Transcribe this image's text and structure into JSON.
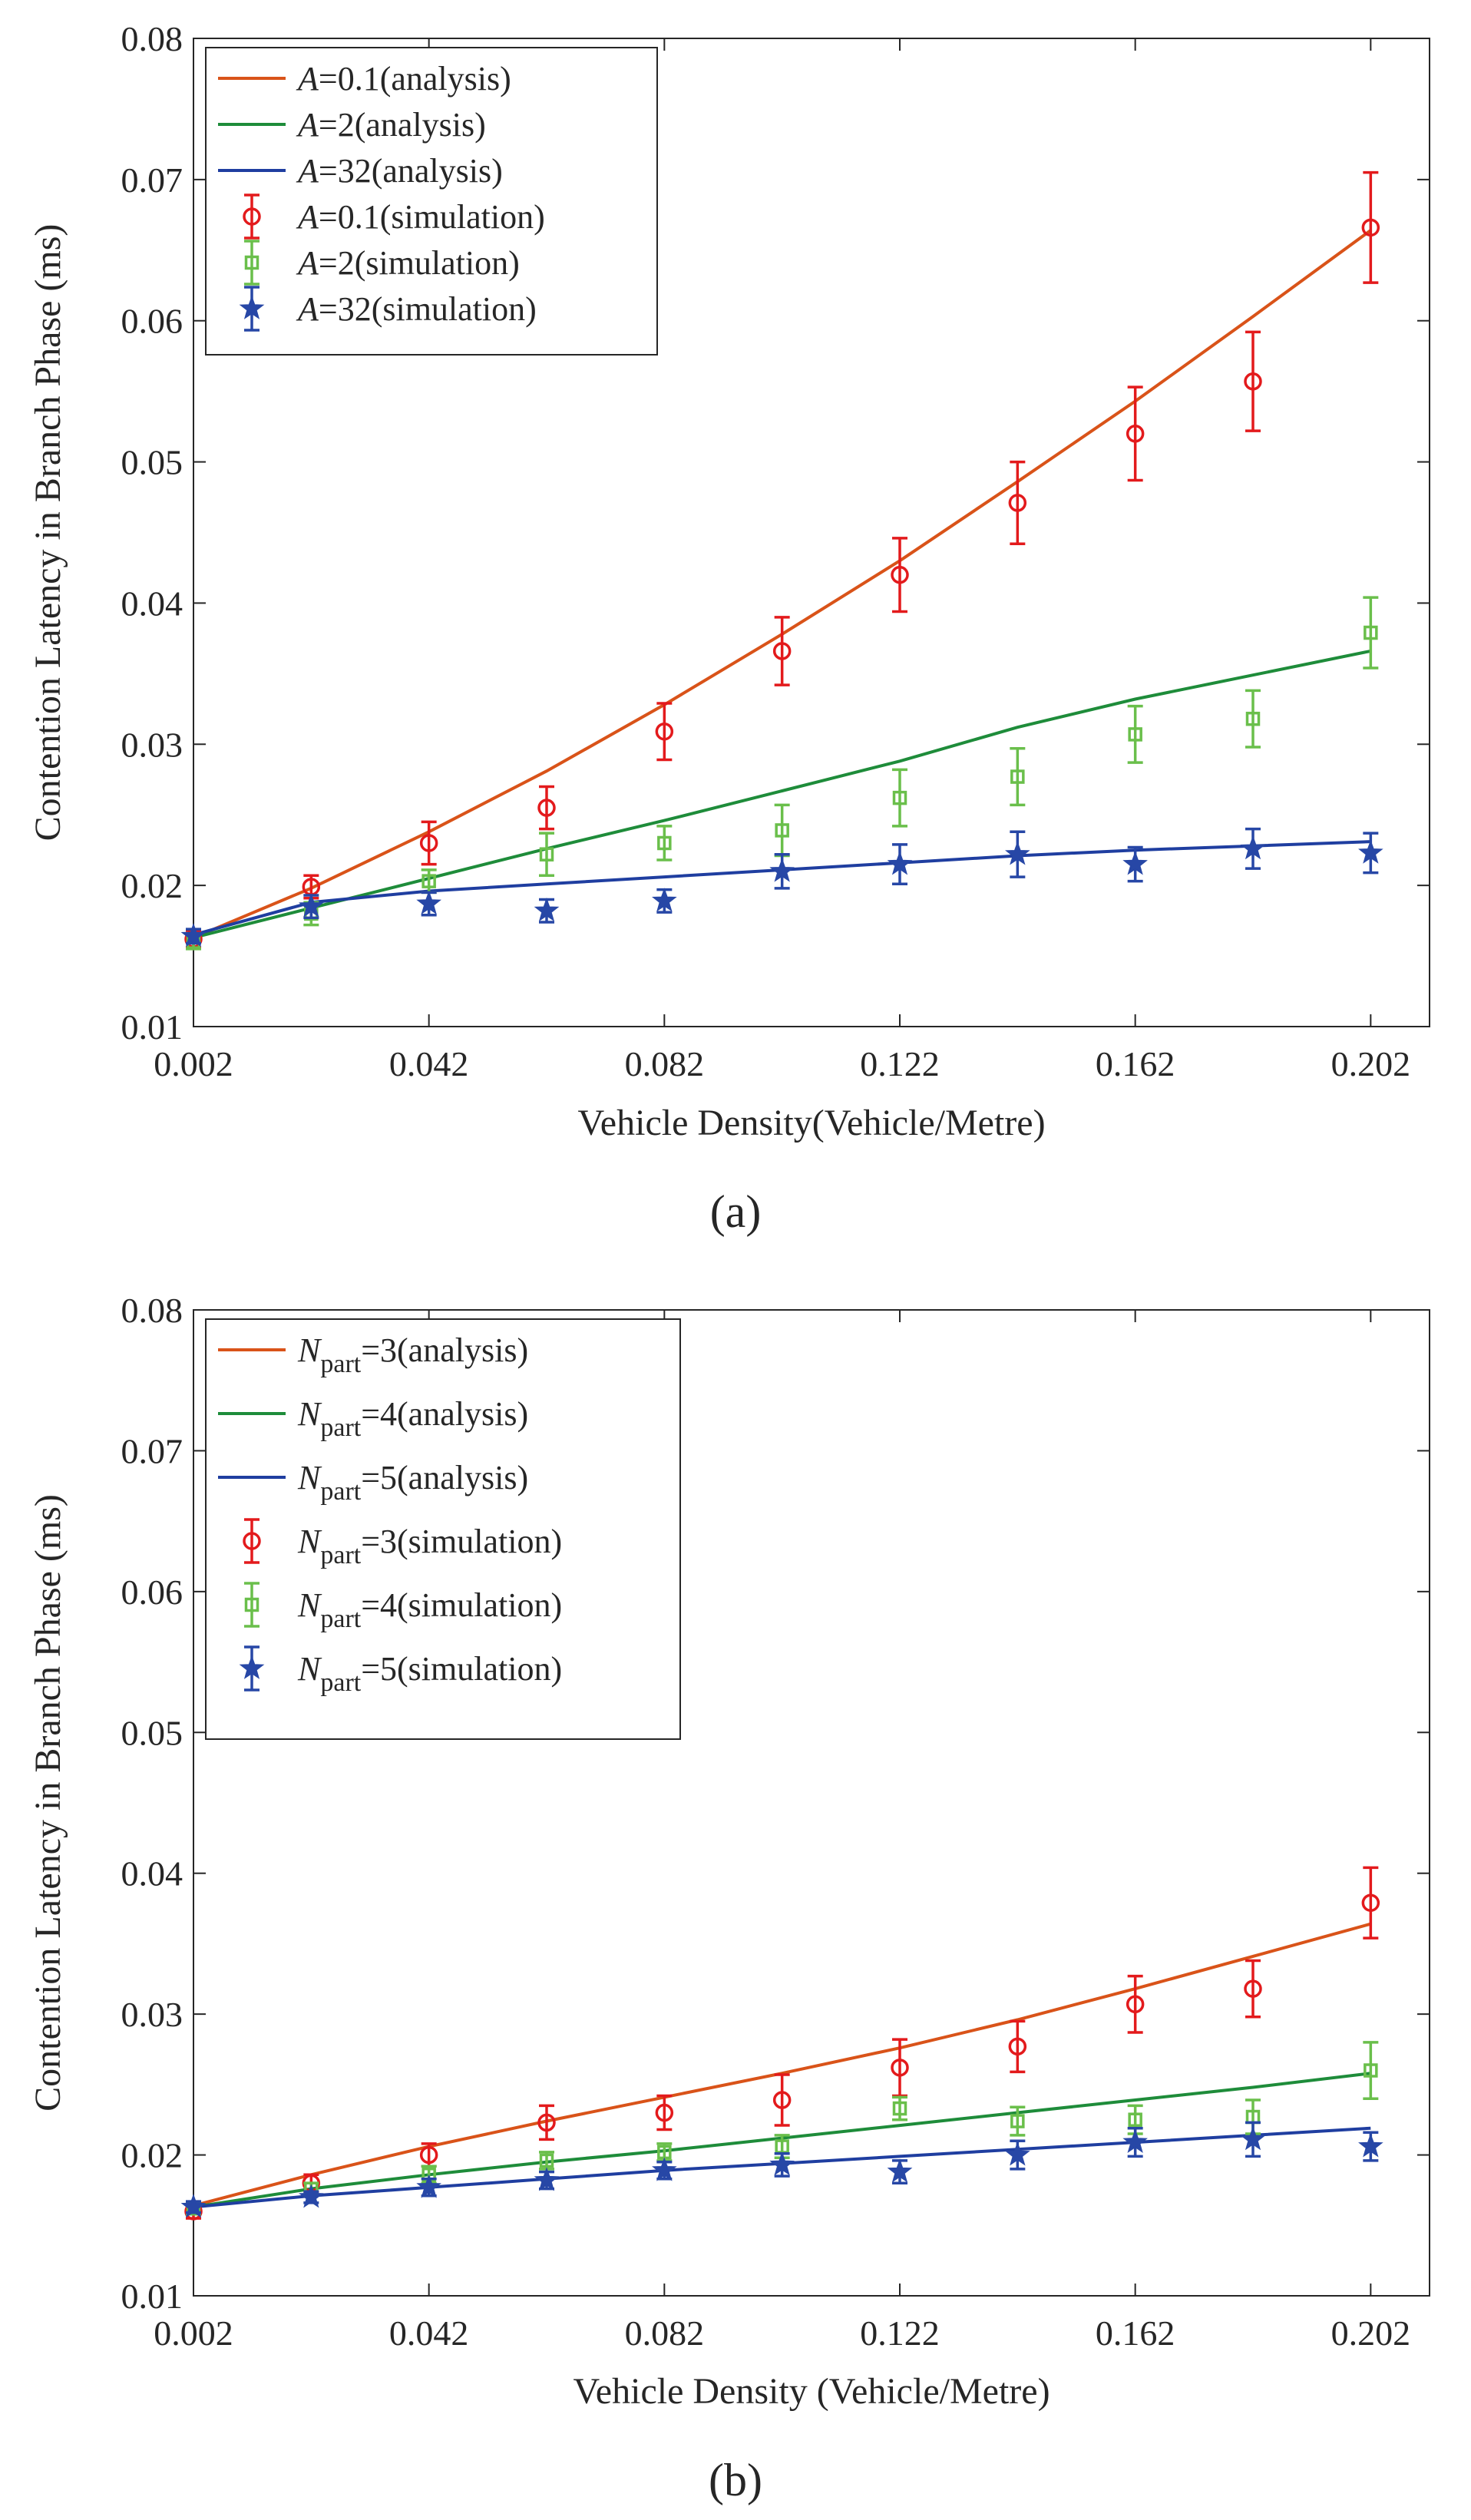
{
  "chart_data": [
    {
      "type": "line",
      "panel_label": "(a)",
      "xlabel": "Vehicle Density(Vehicle/Metre)",
      "ylabel": "Contention Latency in Branch Phase (ms)",
      "xlim": [
        0.002,
        0.212
      ],
      "ylim": [
        0.01,
        0.08
      ],
      "xticks": [
        0.002,
        0.042,
        0.082,
        0.122,
        0.162,
        0.202
      ],
      "xtick_labels": [
        "0.002",
        "0.042",
        "0.082",
        "0.122",
        "0.162",
        "0.202"
      ],
      "yticks": [
        0.01,
        0.02,
        0.03,
        0.04,
        0.05,
        0.06,
        0.07,
        0.08
      ],
      "ytick_labels": [
        "0.01",
        "0.02",
        "0.03",
        "0.04",
        "0.05",
        "0.06",
        "0.07",
        "0.08"
      ],
      "x": [
        0.002,
        0.022,
        0.042,
        0.062,
        0.082,
        0.102,
        0.122,
        0.142,
        0.162,
        0.182,
        0.202
      ],
      "legend_position": "top-left",
      "series": [
        {
          "kind": "analysis",
          "legend": {
            "symbol": "A",
            "text": "=0.1(analysis)"
          },
          "color": "#d95319",
          "values": [
            0.0163,
            0.0198,
            0.0238,
            0.0281,
            0.0328,
            0.0378,
            0.043,
            0.0486,
            0.0543,
            0.0603,
            0.0664
          ]
        },
        {
          "kind": "analysis",
          "legend": {
            "symbol": "A",
            "text": "=2(analysis)"
          },
          "color": "#1e8c3a",
          "values": [
            0.0163,
            0.0184,
            0.0205,
            0.0226,
            0.0246,
            0.0267,
            0.0288,
            0.0312,
            0.0332,
            0.0349,
            0.0366
          ]
        },
        {
          "kind": "analysis",
          "legend": {
            "symbol": "A",
            "text": "=32(analysis)"
          },
          "color": "#1f3ea0",
          "values": [
            0.0165,
            0.0188,
            0.0196,
            0.0201,
            0.0206,
            0.0211,
            0.0216,
            0.0221,
            0.0225,
            0.0228,
            0.0231
          ]
        },
        {
          "kind": "simulation",
          "marker": "circle",
          "legend": {
            "symbol": "A",
            "text": "=0.1(simulation)"
          },
          "color": "#e31a1c",
          "values": [
            0.0162,
            0.0199,
            0.023,
            0.0255,
            0.0309,
            0.0366,
            0.042,
            0.0471,
            0.052,
            0.0557,
            0.0666
          ],
          "errors": [
            0.0006,
            0.0008,
            0.0015,
            0.0015,
            0.002,
            0.0024,
            0.0026,
            0.0029,
            0.0033,
            0.0035,
            0.0039
          ]
        },
        {
          "kind": "simulation",
          "marker": "square",
          "legend": {
            "symbol": "A",
            "text": "=2(simulation)"
          },
          "color": "#6abf4b",
          "values": [
            0.016,
            0.018,
            0.0203,
            0.0222,
            0.023,
            0.0239,
            0.0262,
            0.0277,
            0.0307,
            0.0318,
            0.0379
          ],
          "errors": [
            0.0005,
            0.0008,
            0.0008,
            0.0015,
            0.0012,
            0.0018,
            0.002,
            0.002,
            0.002,
            0.002,
            0.0025
          ]
        },
        {
          "kind": "simulation",
          "marker": "star",
          "legend": {
            "symbol": "A",
            "text": "=32(simulation)"
          },
          "color": "#2747a6",
          "values": [
            0.0164,
            0.0185,
            0.0187,
            0.0182,
            0.0189,
            0.021,
            0.0215,
            0.0222,
            0.0215,
            0.0226,
            0.0223
          ],
          "errors": [
            0.0005,
            0.0008,
            0.0008,
            0.0008,
            0.0008,
            0.0012,
            0.0014,
            0.0016,
            0.0012,
            0.0014,
            0.0014
          ]
        }
      ]
    },
    {
      "type": "line",
      "panel_label": "(b)",
      "xlabel": "Vehicle Density (Vehicle/Metre)",
      "ylabel": "Contention Latency in Branch Phase (ms)",
      "xlim": [
        0.002,
        0.212
      ],
      "ylim": [
        0.01,
        0.08
      ],
      "xticks": [
        0.002,
        0.042,
        0.082,
        0.122,
        0.162,
        0.202
      ],
      "xtick_labels": [
        "0.002",
        "0.042",
        "0.082",
        "0.122",
        "0.162",
        "0.202"
      ],
      "yticks": [
        0.01,
        0.02,
        0.03,
        0.04,
        0.05,
        0.06,
        0.07,
        0.08
      ],
      "ytick_labels": [
        "0.01",
        "0.02",
        "0.03",
        "0.04",
        "0.05",
        "0.06",
        "0.07",
        "0.08"
      ],
      "x": [
        0.002,
        0.022,
        0.042,
        0.062,
        0.082,
        0.102,
        0.122,
        0.142,
        0.162,
        0.182,
        0.202
      ],
      "legend_position": "top-left",
      "series": [
        {
          "kind": "analysis",
          "legend": {
            "symbol": "N",
            "sub": "part",
            "text": "=3(analysis)"
          },
          "color": "#d95319",
          "values": [
            0.0164,
            0.0186,
            0.0206,
            0.0224,
            0.0241,
            0.0258,
            0.0276,
            0.0296,
            0.0318,
            0.0341,
            0.0364
          ]
        },
        {
          "kind": "analysis",
          "legend": {
            "symbol": "N",
            "sub": "part",
            "text": "=4(analysis)"
          },
          "color": "#1e8c3a",
          "values": [
            0.0163,
            0.0176,
            0.0186,
            0.0195,
            0.0203,
            0.0212,
            0.0221,
            0.023,
            0.0239,
            0.0248,
            0.0258
          ]
        },
        {
          "kind": "analysis",
          "legend": {
            "symbol": "N",
            "sub": "part",
            "text": "=5(analysis)"
          },
          "color": "#1f3ea0",
          "values": [
            0.0163,
            0.0171,
            0.0177,
            0.0183,
            0.0189,
            0.0194,
            0.0199,
            0.0204,
            0.0209,
            0.0214,
            0.0219
          ]
        },
        {
          "kind": "simulation",
          "marker": "circle",
          "legend": {
            "symbol": "N",
            "sub": "part",
            "text": "=3(simulation)"
          },
          "color": "#e31a1c",
          "values": [
            0.016,
            0.018,
            0.02,
            0.0223,
            0.023,
            0.0239,
            0.0262,
            0.0277,
            0.0307,
            0.0318,
            0.0379
          ],
          "errors": [
            0.0005,
            0.0006,
            0.0008,
            0.0012,
            0.0012,
            0.0018,
            0.002,
            0.0018,
            0.002,
            0.002,
            0.0025
          ]
        },
        {
          "kind": "simulation",
          "marker": "square",
          "legend": {
            "symbol": "N",
            "sub": "part",
            "text": "=4(simulation)"
          },
          "color": "#6abf4b",
          "values": [
            0.0162,
            0.0176,
            0.0186,
            0.0196,
            0.0202,
            0.0206,
            0.0233,
            0.0224,
            0.0225,
            0.0227,
            0.026
          ],
          "errors": [
            0.0004,
            0.0004,
            0.0006,
            0.0006,
            0.0006,
            0.0008,
            0.0008,
            0.001,
            0.001,
            0.0012,
            0.002
          ]
        },
        {
          "kind": "simulation",
          "marker": "star",
          "legend": {
            "symbol": "N",
            "sub": "part",
            "text": "=5(simulation)"
          },
          "color": "#2747a6",
          "values": [
            0.0163,
            0.017,
            0.0177,
            0.0182,
            0.0189,
            0.0193,
            0.0188,
            0.02,
            0.0209,
            0.0211,
            0.0206
          ],
          "errors": [
            0.0004,
            0.0004,
            0.0006,
            0.0006,
            0.0006,
            0.0008,
            0.0008,
            0.001,
            0.001,
            0.0012,
            0.001
          ]
        }
      ]
    }
  ]
}
